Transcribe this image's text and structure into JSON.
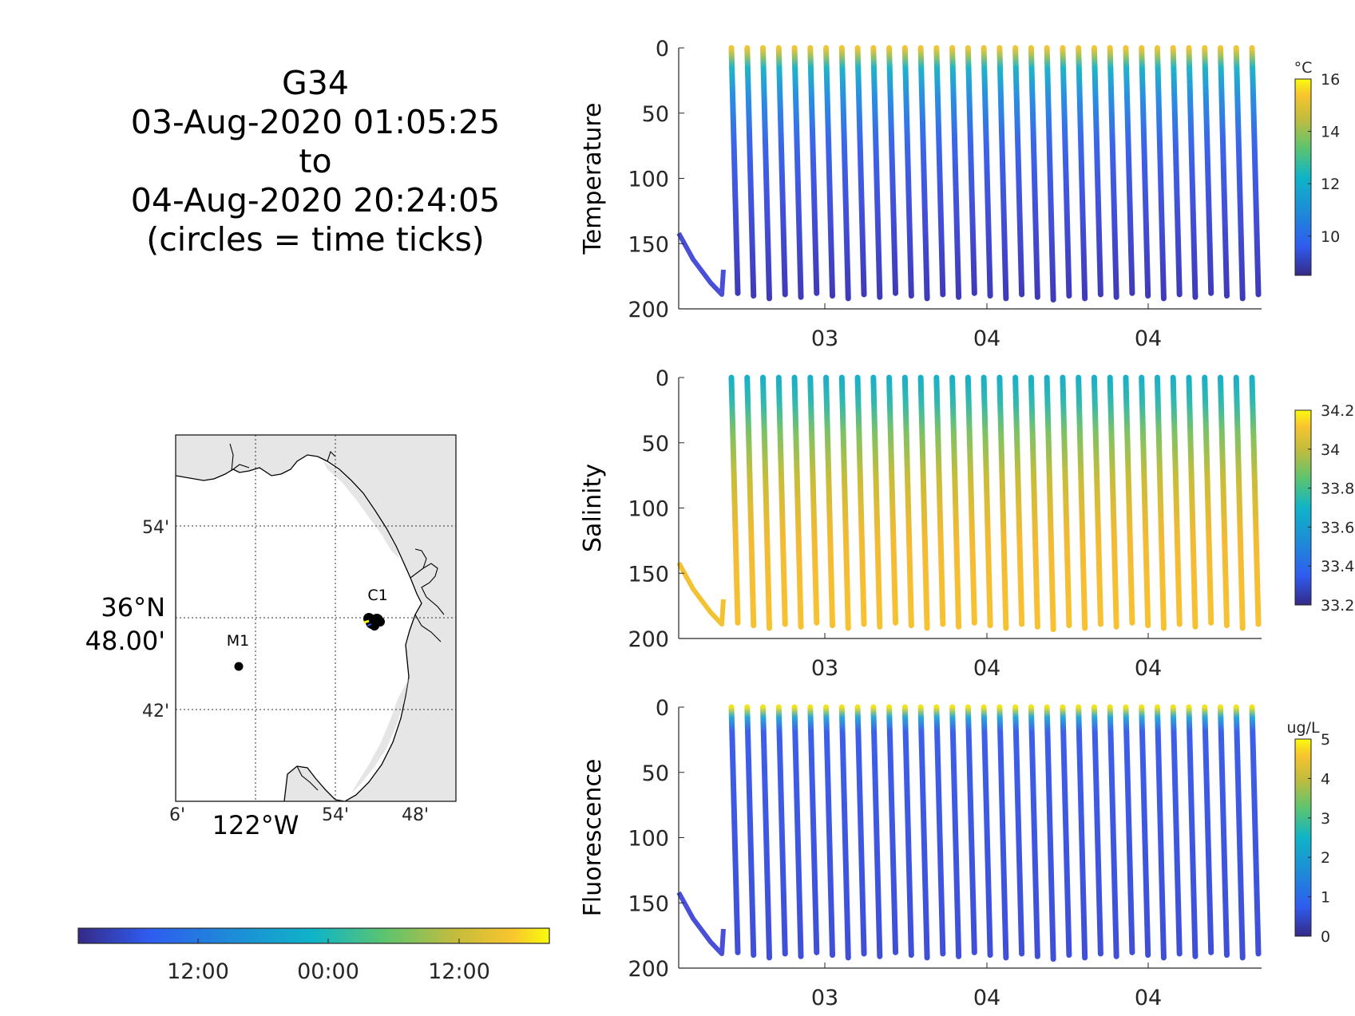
{
  "title": {
    "lines": [
      "G34",
      "03-Aug-2020 01:05:25",
      "to",
      "04-Aug-2020 20:24:05",
      "(circles = time ticks)"
    ]
  },
  "map": {
    "lat_ticks": [
      "54'",
      "48.00'",
      "42'"
    ],
    "lat_major_label": "36°N",
    "lon_ticks": [
      "6'",
      "54'",
      "48'"
    ],
    "lon_major_label": "122°W",
    "stations": [
      {
        "label": "M1"
      },
      {
        "label": "C1"
      }
    ],
    "colors": {
      "land": "#e6e6e6",
      "ocean": "#ffffff",
      "coast": "#000000"
    }
  },
  "time_colorbar": {
    "tick_labels": [
      "12:00",
      "00:00",
      "12:00"
    ]
  },
  "chart_data": [
    {
      "type": "scatter",
      "ylabel": "Temperature",
      "ylim": [
        0,
        200
      ],
      "y_reversed": true,
      "y_ticks": [
        "0",
        "50",
        "100",
        "150",
        "200"
      ],
      "x_ticks": [
        "03",
        "04",
        "04"
      ],
      "colorbar": {
        "unit": "°C",
        "range": [
          8.5,
          16
        ],
        "ticks": [
          "16",
          "14",
          "12",
          "10"
        ]
      },
      "profiles": 34,
      "profile_max_depth_m": 188,
      "grid": false
    },
    {
      "type": "scatter",
      "ylabel": "Salinity",
      "ylim": [
        0,
        200
      ],
      "y_reversed": true,
      "y_ticks": [
        "0",
        "50",
        "100",
        "150",
        "200"
      ],
      "x_ticks": [
        "03",
        "04",
        "04"
      ],
      "colorbar": {
        "unit": "",
        "range": [
          33.2,
          34.2
        ],
        "ticks": [
          "34.2",
          "34",
          "33.8",
          "33.6",
          "33.4",
          "33.2"
        ]
      },
      "profiles": 34,
      "profile_max_depth_m": 188,
      "grid": false
    },
    {
      "type": "scatter",
      "ylabel": "Fluorescence",
      "ylim": [
        0,
        200
      ],
      "y_reversed": true,
      "y_ticks": [
        "0",
        "50",
        "100",
        "150",
        "200"
      ],
      "x_ticks": [
        "03",
        "04",
        "04"
      ],
      "colorbar": {
        "unit": "ug/L",
        "range": [
          0,
          5
        ],
        "ticks": [
          "5",
          "4",
          "3",
          "2",
          "1",
          "0"
        ]
      },
      "profiles": 34,
      "profile_max_depth_m": 188,
      "grid": false
    }
  ]
}
